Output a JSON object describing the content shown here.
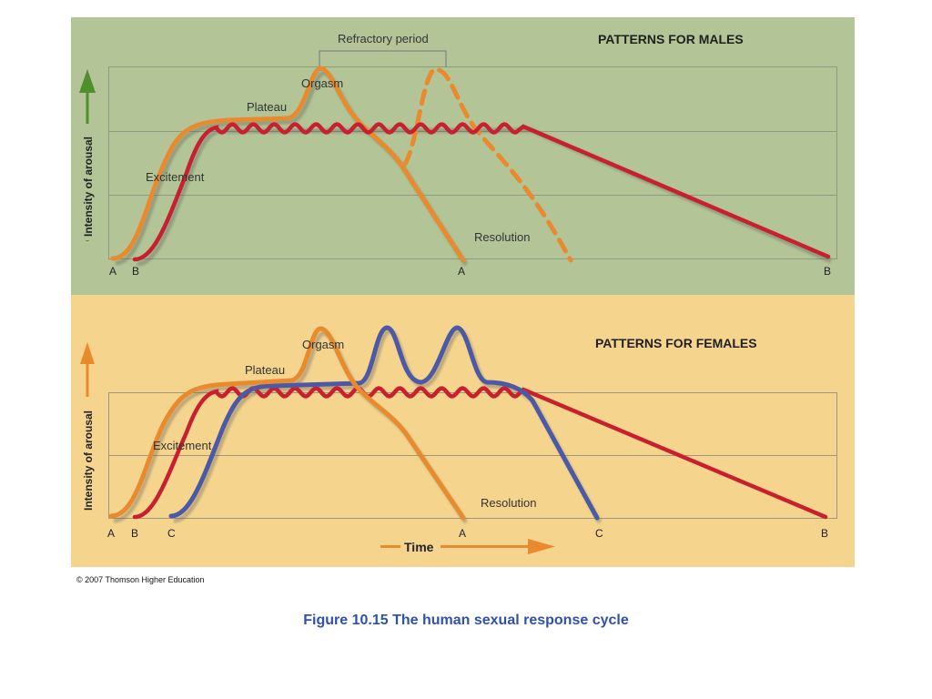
{
  "males": {
    "title": "PATTERNS FOR MALES",
    "y_axis_label": "Intensity of arousal",
    "refractory_label": "Refractory period",
    "phases": {
      "orgasm": "Orgasm",
      "plateau": "Plateau",
      "excitement": "Excitement",
      "resolution": "Resolution"
    },
    "ticks": {
      "start_a": "A",
      "start_b": "B",
      "end_a": "A",
      "end_b": "B"
    }
  },
  "females": {
    "title": "PATTERNS FOR FEMALES",
    "y_axis_label": "Intensity of arousal",
    "x_axis_label": "Time",
    "phases": {
      "orgasm": "Orgasm",
      "plateau": "Plateau",
      "excitement": "Excitement",
      "resolution": "Resolution"
    },
    "ticks": {
      "start_a": "A",
      "start_b": "B",
      "start_c": "C",
      "end_a": "A",
      "end_c": "C",
      "end_b": "B"
    }
  },
  "colors": {
    "male_bg": "#b3c596",
    "female_bg": "#f5d58e",
    "pattern_a": "#ea8a2e",
    "pattern_b": "#c8202f",
    "pattern_c": "#4c59a6",
    "male_arrow": "#4f8f2c",
    "female_arrow": "#ea8a2e"
  },
  "copyright": "© 2007 Thomson Higher Education",
  "caption": "Figure 10.15  The human sexual response cycle"
}
